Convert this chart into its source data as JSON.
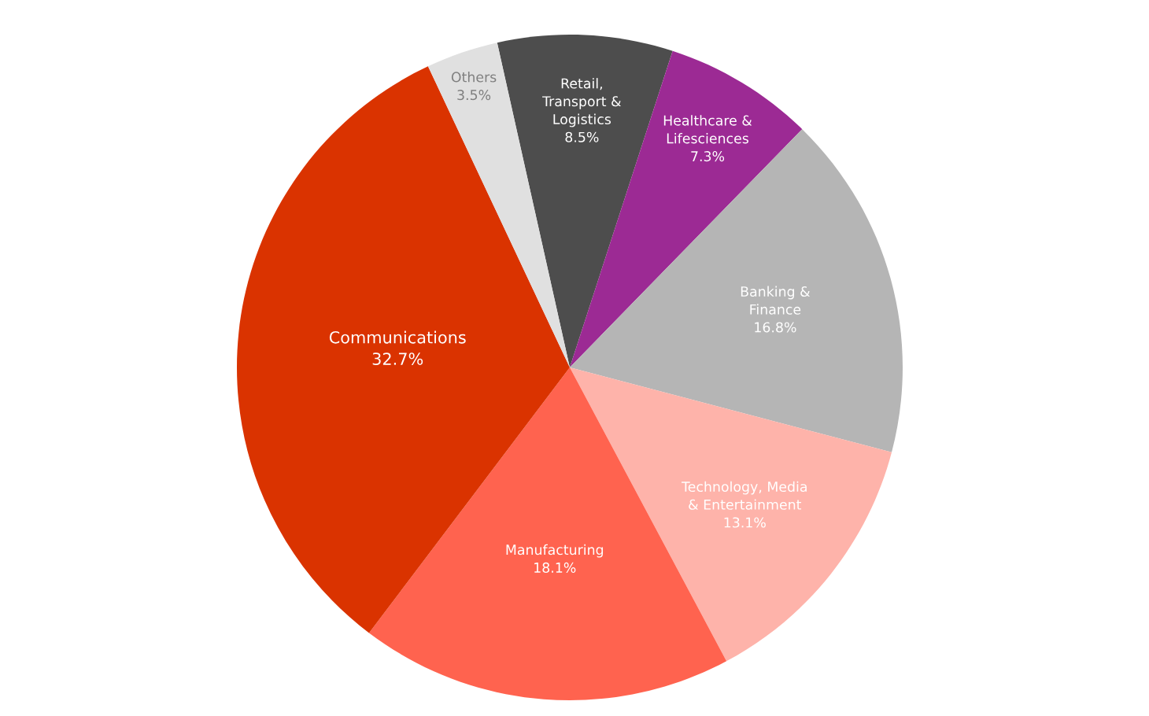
{
  "chart_data": {
    "type": "pie",
    "categories": [
      "Retail,\nTransport &\nLogistics",
      "Healthcare &\nLifesciences",
      "Banking &\nFinance",
      "Technology, Media\n& Entertainment",
      "Manufacturing",
      "Communications",
      "Others"
    ],
    "values": [
      8.5,
      7.3,
      16.8,
      13.1,
      18.1,
      32.7,
      3.5
    ],
    "value_labels": [
      "8.5%",
      "7.3%",
      "16.8%",
      "13.1%",
      "18.1%",
      "32.7%",
      "3.5%"
    ],
    "colors": [
      "#4d4d4d",
      "#9c2a94",
      "#b5b5b5",
      "#feb3aa",
      "#ff634f",
      "#da3300",
      "#e0e0e0"
    ]
  }
}
